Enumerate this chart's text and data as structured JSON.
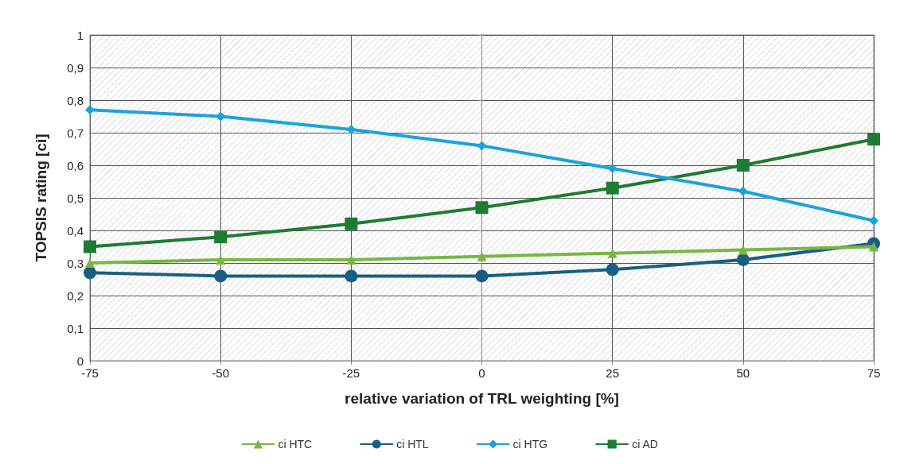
{
  "chart_data": {
    "type": "line",
    "xlabel": "relative variation of TRL weighting [%]",
    "ylabel": "TOPSIS rating [ci]",
    "x": [
      -75,
      -50,
      -25,
      0,
      25,
      50,
      75
    ],
    "series": [
      {
        "name": "ci HTC",
        "color": "#76b743",
        "marker": "triangle",
        "values": [
          0.3,
          0.31,
          0.31,
          0.32,
          0.33,
          0.34,
          0.35
        ]
      },
      {
        "name": "ci HTL",
        "color": "#1a5e85",
        "marker": "circle",
        "values": [
          0.27,
          0.26,
          0.26,
          0.26,
          0.28,
          0.31,
          0.36
        ]
      },
      {
        "name": "ci HTG",
        "color": "#1aa3dd",
        "marker": "diamond",
        "values": [
          0.77,
          0.75,
          0.71,
          0.66,
          0.59,
          0.52,
          0.43
        ]
      },
      {
        "name": "ci AD",
        "color": "#1e7b34",
        "marker": "square",
        "values": [
          0.35,
          0.38,
          0.42,
          0.47,
          0.53,
          0.6,
          0.68
        ]
      }
    ],
    "xlim": [
      -75,
      75
    ],
    "xticks": [
      -75,
      -50,
      -25,
      0,
      25,
      50,
      75
    ],
    "ylim": [
      0,
      1
    ],
    "yticks": [
      0,
      {
        "value": 0.1,
        "label": "0,1"
      },
      {
        "value": 0.2,
        "label": "0,2"
      },
      {
        "value": 0.3,
        "label": "0,3"
      },
      {
        "value": 0.4,
        "label": "0,4"
      },
      {
        "value": 0.5,
        "label": "0,5"
      },
      {
        "value": 0.6,
        "label": "0,6"
      },
      {
        "value": 0.7,
        "label": "0,7"
      },
      {
        "value": 0.8,
        "label": "0,8"
      },
      {
        "value": 0.9,
        "label": "0,9"
      },
      1
    ],
    "grid": true,
    "legend": "bottom",
    "line_style": "solid"
  }
}
